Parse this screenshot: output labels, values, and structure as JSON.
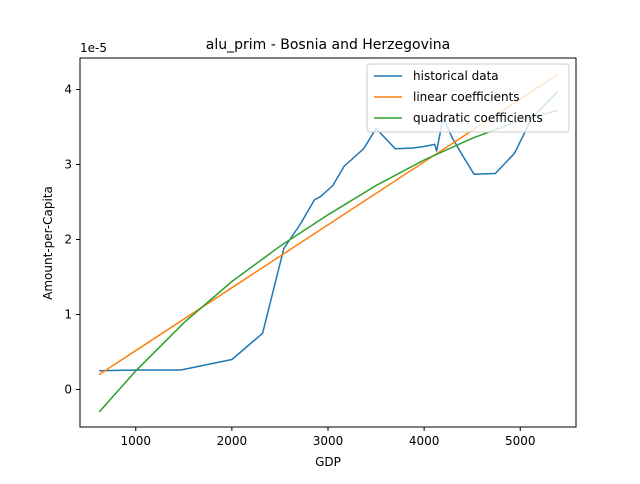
{
  "chart_data": {
    "type": "line",
    "title": "alu_prim - Bosnia and Herzegovina",
    "xlabel": "GDP",
    "ylabel": "Amount-per-Capita",
    "y_scale_label": "1e-5",
    "xlim": [
      420,
      5580
    ],
    "ylim": [
      -0.5,
      4.42
    ],
    "x_ticks": [
      1000,
      2000,
      3000,
      4000,
      5000
    ],
    "x_tick_labels": [
      "1000",
      "2000",
      "3000",
      "4000",
      "5000"
    ],
    "y_ticks": [
      0,
      1,
      2,
      3,
      4
    ],
    "y_tick_labels": [
      "0",
      "1",
      "2",
      "3",
      "4"
    ],
    "grid": false,
    "legend_position": "top-right",
    "series": [
      {
        "name": "historical data",
        "color": "#1f77b4",
        "x": [
          620,
          1000,
          1470,
          2000,
          2320,
          2540,
          2710,
          2860,
          2920,
          3050,
          3170,
          3370,
          3500,
          3700,
          3880,
          4000,
          4110,
          4130,
          4200,
          4290,
          4400,
          4520,
          4740,
          4940,
          5120,
          5390
        ],
        "y": [
          0.25,
          0.26,
          0.26,
          0.4,
          0.75,
          1.88,
          2.2,
          2.53,
          2.57,
          2.72,
          2.98,
          3.21,
          3.48,
          3.21,
          3.22,
          3.24,
          3.27,
          3.18,
          3.63,
          3.36,
          3.12,
          2.87,
          2.88,
          3.15,
          3.62,
          3.97
        ]
      },
      {
        "name": "linear coefficients",
        "color": "#ff7f0e",
        "x": [
          620,
          5390
        ],
        "y": [
          0.2,
          4.2
        ]
      },
      {
        "name": "quadratic coefficients",
        "color": "#2ca02c",
        "x": [
          620,
          1000,
          1500,
          2000,
          2500,
          3000,
          3500,
          4000,
          4500,
          5000,
          5390
        ],
        "y": [
          -0.3,
          0.25,
          0.89,
          1.44,
          1.91,
          2.33,
          2.72,
          3.06,
          3.35,
          3.59,
          3.72
        ]
      }
    ]
  }
}
